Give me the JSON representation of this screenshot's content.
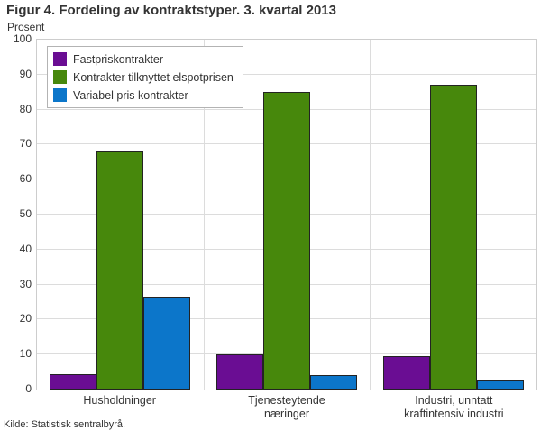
{
  "figure": {
    "title": "Figur 4. Fordeling av kontraktstyper. 3. kvartal 2013",
    "unit_label": "Prosent",
    "source": "Kilde: Statistisk sentralbyrå."
  },
  "chart_data": {
    "type": "bar",
    "title": "Figur 4. Fordeling av kontraktstyper. 3. kvartal 2013",
    "xlabel": "",
    "ylabel": "Prosent",
    "ylim": [
      0,
      100
    ],
    "ytick_step": 10,
    "grid": true,
    "legend_position": "top-left",
    "categories": [
      "Husholdninger",
      "Tjenesteytende\nnæringer",
      "Industri, unntatt\nkraftintensiv industri"
    ],
    "series": [
      {
        "name": "Fastpriskontrakter",
        "color": "#6a0d93",
        "values": [
          4.5,
          10,
          9.5
        ]
      },
      {
        "name": "Kontrakter tilknyttet elspotprisen",
        "color": "#47880c",
        "values": [
          68,
          85,
          87
        ]
      },
      {
        "name": "Variabel pris kontrakter",
        "color": "#0c76ca",
        "values": [
          26.5,
          4,
          2.5
        ]
      }
    ],
    "style": {
      "grid_color": "#dcdcdc",
      "plot_border_color": "#cdcdcd",
      "axis_color": "#7f7f7f",
      "bar_border_color": "#232323",
      "text_color": "#333333",
      "legend_border_color": "#b3b3b3",
      "background": "#ffffff"
    }
  }
}
